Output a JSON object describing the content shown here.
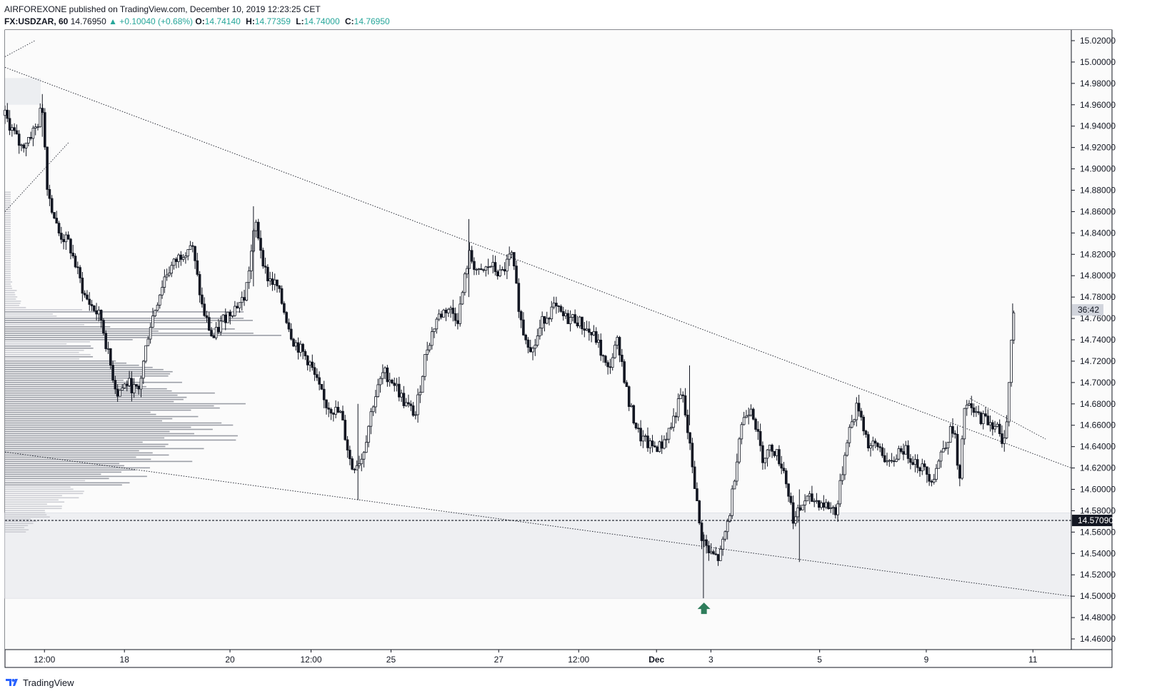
{
  "header": {
    "publisher_line": "AIRFOREXONE published on TradingView.com, December 10, 2019 12:23:25 CET",
    "symbol": "FX:USDZAR, 60",
    "last": "14.76950",
    "change": "▲ +0.10040 (+0.68%)",
    "o_label": "O:",
    "o_value": "14.74140",
    "h_label": "H:",
    "h_value": "14.77359",
    "l_label": "L:",
    "l_value": "14.74000",
    "c_label": "C:",
    "c_value": "14.76950"
  },
  "footer": {
    "brand": "TradingView"
  },
  "colors": {
    "up": "#26a69a",
    "candle": "#131722",
    "arrow": "#2e7d5b",
    "volume_profile": "#9598a1",
    "zone": "#eeeff2"
  },
  "chart_data": {
    "type": "candlestick",
    "symbol": "FX:USDZAR",
    "interval": "60",
    "ylim": [
      14.45,
      15.03
    ],
    "y_ticks": [
      "15.02000",
      "15.00000",
      "14.98000",
      "14.96000",
      "14.94000",
      "14.92000",
      "14.90000",
      "14.88000",
      "14.86000",
      "14.84000",
      "14.82000",
      "14.80000",
      "14.78000",
      "14.76000",
      "14.74000",
      "14.72000",
      "14.70000",
      "14.68000",
      "14.66000",
      "14.64000",
      "14.62000",
      "14.60000",
      "14.58000",
      "14.56000",
      "14.54000",
      "14.52000",
      "14.50000",
      "14.48000",
      "14.46000"
    ],
    "x_ticks": [
      "12:00",
      "18",
      "20",
      "12:00",
      "25",
      "27",
      "12:00",
      "Dec",
      "3",
      "5",
      "9",
      "11"
    ],
    "price_line": {
      "value": 14.5709,
      "label": "14.57090"
    },
    "countdown_label": "36:42",
    "countdown_value": 14.768,
    "support_zone": [
      14.498,
      14.578
    ],
    "trendlines": [
      {
        "name": "descending-resistance",
        "from_x": 0.0,
        "from_y": 14.995,
        "to_x": 1.0,
        "to_y": 14.62
      },
      {
        "name": "descending-support",
        "from_x": 0.0,
        "from_y": 14.635,
        "to_x": 1.0,
        "to_y": 14.5
      }
    ],
    "price_path": [
      [
        0.0,
        14.95
      ],
      [
        0.015,
        14.92
      ],
      [
        0.03,
        14.94
      ],
      [
        0.035,
        14.96
      ],
      [
        0.04,
        14.88
      ],
      [
        0.05,
        14.84
      ],
      [
        0.06,
        14.83
      ],
      [
        0.075,
        14.78
      ],
      [
        0.09,
        14.76
      ],
      [
        0.098,
        14.72
      ],
      [
        0.105,
        14.69
      ],
      [
        0.115,
        14.7
      ],
      [
        0.125,
        14.69
      ],
      [
        0.135,
        14.75
      ],
      [
        0.15,
        14.8
      ],
      [
        0.165,
        14.82
      ],
      [
        0.175,
        14.83
      ],
      [
        0.185,
        14.77
      ],
      [
        0.195,
        14.74
      ],
      [
        0.205,
        14.76
      ],
      [
        0.215,
        14.77
      ],
      [
        0.225,
        14.78
      ],
      [
        0.235,
        14.85
      ],
      [
        0.245,
        14.8
      ],
      [
        0.255,
        14.79
      ],
      [
        0.27,
        14.74
      ],
      [
        0.285,
        14.72
      ],
      [
        0.3,
        14.68
      ],
      [
        0.315,
        14.67
      ],
      [
        0.325,
        14.62
      ],
      [
        0.335,
        14.63
      ],
      [
        0.345,
        14.68
      ],
      [
        0.355,
        14.71
      ],
      [
        0.365,
        14.7
      ],
      [
        0.375,
        14.68
      ],
      [
        0.385,
        14.67
      ],
      [
        0.395,
        14.73
      ],
      [
        0.405,
        14.76
      ],
      [
        0.415,
        14.77
      ],
      [
        0.425,
        14.76
      ],
      [
        0.435,
        14.82
      ],
      [
        0.445,
        14.8
      ],
      [
        0.455,
        14.81
      ],
      [
        0.465,
        14.8
      ],
      [
        0.475,
        14.82
      ],
      [
        0.485,
        14.75
      ],
      [
        0.495,
        14.73
      ],
      [
        0.505,
        14.76
      ],
      [
        0.515,
        14.77
      ],
      [
        0.525,
        14.76
      ],
      [
        0.535,
        14.76
      ],
      [
        0.545,
        14.75
      ],
      [
        0.555,
        14.74
      ],
      [
        0.565,
        14.71
      ],
      [
        0.575,
        14.74
      ],
      [
        0.585,
        14.68
      ],
      [
        0.595,
        14.65
      ],
      [
        0.605,
        14.64
      ],
      [
        0.615,
        14.64
      ],
      [
        0.625,
        14.66
      ],
      [
        0.635,
        14.69
      ],
      [
        0.645,
        14.62
      ],
      [
        0.652,
        14.56
      ],
      [
        0.66,
        14.54
      ],
      [
        0.67,
        14.535
      ],
      [
        0.68,
        14.58
      ],
      [
        0.69,
        14.66
      ],
      [
        0.7,
        14.68
      ],
      [
        0.71,
        14.63
      ],
      [
        0.72,
        14.64
      ],
      [
        0.73,
        14.62
      ],
      [
        0.74,
        14.57
      ],
      [
        0.75,
        14.59
      ],
      [
        0.76,
        14.59
      ],
      [
        0.77,
        14.585
      ],
      [
        0.78,
        14.58
      ],
      [
        0.79,
        14.65
      ],
      [
        0.8,
        14.68
      ],
      [
        0.81,
        14.64
      ],
      [
        0.82,
        14.64
      ],
      [
        0.83,
        14.62
      ],
      [
        0.84,
        14.64
      ],
      [
        0.85,
        14.63
      ],
      [
        0.86,
        14.62
      ],
      [
        0.87,
        14.61
      ],
      [
        0.88,
        14.64
      ],
      [
        0.89,
        14.66
      ],
      [
        0.895,
        14.6
      ],
      [
        0.9,
        14.68
      ],
      [
        0.91,
        14.67
      ],
      [
        0.92,
        14.665
      ],
      [
        0.93,
        14.66
      ],
      [
        0.935,
        14.64
      ],
      [
        0.94,
        14.67
      ],
      [
        0.945,
        14.76
      ],
      [
        0.948,
        14.7695
      ]
    ],
    "notable_wicks": [
      {
        "x": 0.035,
        "high": 14.97,
        "low": 14.93
      },
      {
        "x": 0.233,
        "high": 14.865,
        "low": 14.79
      },
      {
        "x": 0.331,
        "high": 14.68,
        "low": 14.59
      },
      {
        "x": 0.435,
        "high": 14.853,
        "low": 14.78
      },
      {
        "x": 0.655,
        "high": 14.56,
        "low": 14.498
      },
      {
        "x": 0.642,
        "high": 14.716,
        "low": 14.66
      },
      {
        "x": 0.745,
        "high": 14.6,
        "low": 14.532
      },
      {
        "x": 0.945,
        "high": 14.774,
        "low": 14.74
      }
    ]
  }
}
